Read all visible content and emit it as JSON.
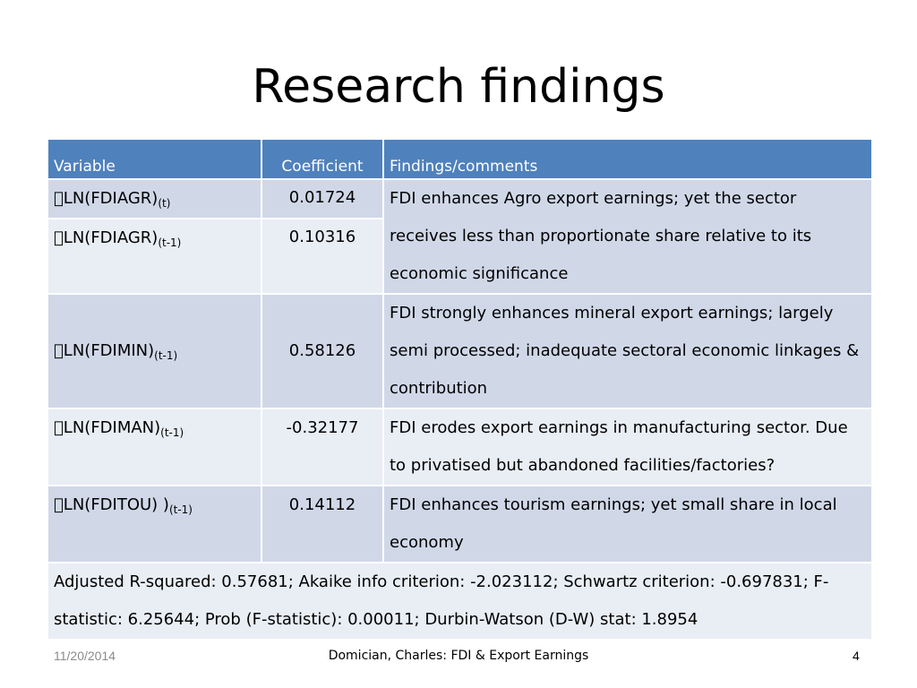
{
  "slide": {
    "title": "Research findings",
    "footer_date": "11/20/2014",
    "footer_center": "Domician, Charles: FDI & Export Earnings",
    "page_number": "4"
  },
  "table": {
    "headers": [
      "Variable",
      "Coefficient",
      "Findings/comments"
    ],
    "rows": [
      {
        "var_prefix": "LN(FDIAGR)",
        "var_sub": "(t)",
        "coef": "0.01724"
      },
      {
        "var_prefix": "LN(FDIAGR)",
        "var_sub": "(t-1)",
        "coef": "0.10316"
      },
      {
        "var_prefix": "LN(FDIMIN)",
        "var_sub": "(t-1)",
        "coef": "0.58126",
        "comment": "FDI strongly enhances mineral export earnings; largely semi processed; inadequate sectoral economic linkages & contribution"
      },
      {
        "var_prefix": "LN(FDIMAN)",
        "var_sub": "(t-1)",
        "coef": "-0.32177",
        "comment": "FDI erodes export earnings in manufacturing sector. Due to privatised but abandoned facilities/factories?"
      },
      {
        "var_prefix": "LN(FDITOU) )",
        "var_sub": "(t-1)",
        "coef": "0.14112",
        "comment": "FDI enhances tourism earnings; yet small share in local economy"
      }
    ],
    "agro_comment": "FDI enhances Agro export earnings; yet the sector receives less than proportionate share relative to its economic significance",
    "stats": "Adjusted R-squared: 0.57681;  Akaike info criterion: -2.023112; Schwartz criterion: -0.697831; F-statistic: 6.25644; Prob (F-statistic): 0.00011; Durbin-Watson (D-W) stat: 1.8954"
  }
}
